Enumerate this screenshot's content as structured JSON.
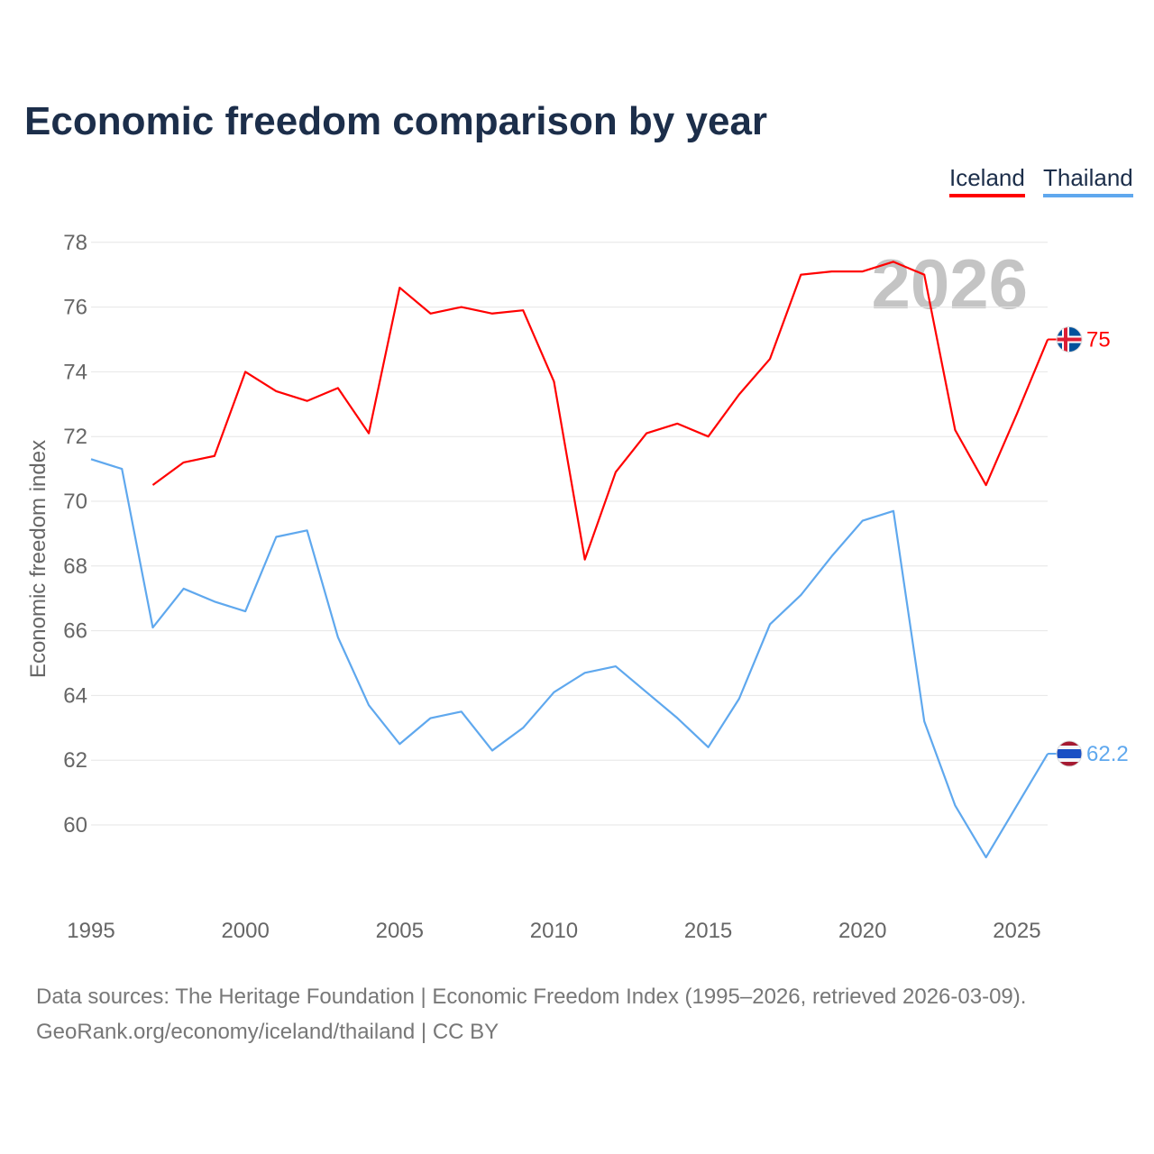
{
  "chart_data": {
    "type": "line",
    "title": "Economic freedom comparison by year",
    "xlabel": "",
    "ylabel": "Economic freedom index",
    "xlim": [
      1995,
      2026
    ],
    "ylim": [
      58,
      78
    ],
    "x_ticks": [
      "1995",
      "2000",
      "2005",
      "2010",
      "2015",
      "2020",
      "2025"
    ],
    "y_ticks": [
      "60",
      "62",
      "64",
      "66",
      "68",
      "70",
      "72",
      "74",
      "76",
      "78"
    ],
    "grid": true,
    "legend_position": "top-right",
    "watermark_year": "2026",
    "series": [
      {
        "name": "Iceland",
        "color": "#ff0000",
        "end_label": "75",
        "x": [
          1997,
          1998,
          1999,
          2000,
          2001,
          2002,
          2003,
          2004,
          2005,
          2006,
          2007,
          2008,
          2009,
          2010,
          2011,
          2012,
          2013,
          2014,
          2015,
          2016,
          2017,
          2018,
          2019,
          2020,
          2021,
          2022,
          2023,
          2024,
          2025,
          2026
        ],
        "values": [
          70.5,
          71.2,
          71.4,
          74.0,
          73.4,
          73.1,
          73.5,
          72.1,
          76.6,
          75.8,
          76.0,
          75.8,
          75.9,
          73.7,
          68.2,
          70.9,
          72.1,
          72.4,
          72.0,
          73.3,
          74.4,
          77.0,
          77.1,
          77.1,
          77.4,
          77.0,
          72.2,
          70.5,
          72.7,
          75.0
        ]
      },
      {
        "name": "Thailand",
        "color": "#5fa8ee",
        "end_label": "62.2",
        "x": [
          1995,
          1996,
          1997,
          1998,
          1999,
          2000,
          2001,
          2002,
          2003,
          2004,
          2005,
          2006,
          2007,
          2008,
          2009,
          2010,
          2011,
          2012,
          2013,
          2014,
          2015,
          2016,
          2017,
          2018,
          2019,
          2020,
          2021,
          2022,
          2023,
          2024,
          2025,
          2026
        ],
        "values": [
          71.3,
          71.0,
          66.1,
          67.3,
          66.9,
          66.6,
          68.9,
          69.1,
          65.8,
          63.7,
          62.5,
          63.3,
          63.5,
          62.3,
          63.0,
          64.1,
          64.7,
          64.9,
          64.1,
          63.3,
          62.4,
          63.9,
          66.2,
          67.1,
          68.3,
          69.4,
          69.7,
          63.2,
          60.6,
          59.0,
          60.6,
          62.2
        ]
      }
    ]
  },
  "source": {
    "line1": "Data sources: The Heritage Foundation | Economic Freedom Index (1995–2026, retrieved 2026-03-09).",
    "line2": "GeoRank.org/economy/iceland/thailand | CC BY"
  }
}
